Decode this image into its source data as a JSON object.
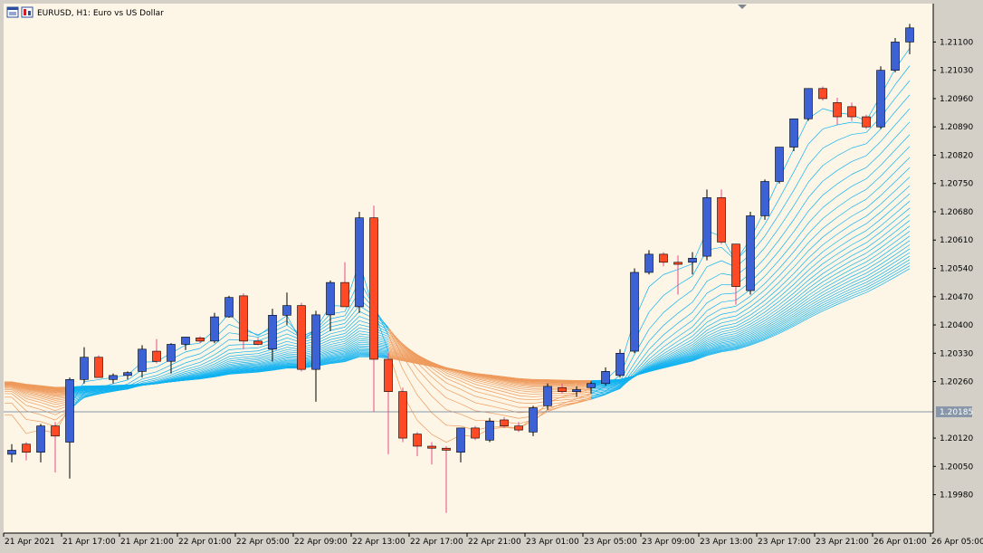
{
  "header": {
    "title": "EURUSD, H1:  Euro vs US Dollar",
    "symbol_icon": "chart-window-icon"
  },
  "colors": {
    "background": "#fdf6e6",
    "bull_candle": "#3d62d6",
    "bear_candle": "#ff4a25",
    "bull_wick": "#000000",
    "bear_wick": "#e84a8a",
    "ribbon_up": "#12b2f0",
    "ribbon_down": "#ee9a5c",
    "price_line": "#8796a8",
    "price_badge": "#8796a8"
  },
  "chart_data": {
    "type": "candlestick",
    "symbol": "EURUSD",
    "timeframe": "H1",
    "ylim": [
      1.19885,
      1.21195
    ],
    "y_ticks": [
      "1.21100",
      "1.21030",
      "1.20960",
      "1.20890",
      "1.20820",
      "1.20750",
      "1.20680",
      "1.20610",
      "1.20540",
      "1.20470",
      "1.20400",
      "1.20330",
      "1.20260",
      "1.20185",
      "1.20120",
      "1.20050",
      "1.19980"
    ],
    "x_ticks": [
      "21 Apr 2021",
      "21 Apr 17:00",
      "21 Apr 21:00",
      "22 Apr 01:00",
      "22 Apr 05:00",
      "22 Apr 09:00",
      "22 Apr 13:00",
      "22 Apr 17:00",
      "22 Apr 21:00",
      "23 Apr 01:00",
      "23 Apr 05:00",
      "23 Apr 09:00",
      "23 Apr 13:00",
      "23 Apr 17:00",
      "23 Apr 21:00",
      "26 Apr 01:00",
      "26 Apr 05:00"
    ],
    "current_price": "1.20185",
    "candles": [
      {
        "o": 1.2008,
        "h": 1.20105,
        "l": 1.2006,
        "c": 1.2009
      },
      {
        "o": 1.20105,
        "h": 1.2011,
        "l": 1.20065,
        "c": 1.20085
      },
      {
        "o": 1.20085,
        "h": 1.20155,
        "l": 1.2006,
        "c": 1.2015
      },
      {
        "o": 1.2015,
        "h": 1.2016,
        "l": 1.20035,
        "c": 1.20125
      },
      {
        "o": 1.2011,
        "h": 1.2027,
        "l": 1.2002,
        "c": 1.20265
      },
      {
        "o": 1.20265,
        "h": 1.20345,
        "l": 1.20255,
        "c": 1.2032
      },
      {
        "o": 1.2032,
        "h": 1.20325,
        "l": 1.2027,
        "c": 1.2027
      },
      {
        "o": 1.20265,
        "h": 1.2028,
        "l": 1.20255,
        "c": 1.20275
      },
      {
        "o": 1.20275,
        "h": 1.20285,
        "l": 1.20265,
        "c": 1.20282
      },
      {
        "o": 1.20285,
        "h": 1.2035,
        "l": 1.2027,
        "c": 1.2034
      },
      {
        "o": 1.20335,
        "h": 1.20365,
        "l": 1.20305,
        "c": 1.2031
      },
      {
        "o": 1.2031,
        "h": 1.20355,
        "l": 1.2028,
        "c": 1.20352
      },
      {
        "o": 1.20352,
        "h": 1.2037,
        "l": 1.20338,
        "c": 1.2037
      },
      {
        "o": 1.20368,
        "h": 1.20372,
        "l": 1.20355,
        "c": 1.2036
      },
      {
        "o": 1.2036,
        "h": 1.2043,
        "l": 1.20355,
        "c": 1.2042
      },
      {
        "o": 1.2042,
        "h": 1.20472,
        "l": 1.20418,
        "c": 1.20468
      },
      {
        "o": 1.20472,
        "h": 1.20478,
        "l": 1.2034,
        "c": 1.2036
      },
      {
        "o": 1.2036,
        "h": 1.20368,
        "l": 1.2035,
        "c": 1.20352
      },
      {
        "o": 1.2034,
        "h": 1.2044,
        "l": 1.2031,
        "c": 1.20424
      },
      {
        "o": 1.20424,
        "h": 1.2048,
        "l": 1.204,
        "c": 1.20448
      },
      {
        "o": 1.20448,
        "h": 1.20455,
        "l": 1.20285,
        "c": 1.2029
      },
      {
        "o": 1.2029,
        "h": 1.20435,
        "l": 1.2021,
        "c": 1.20425
      },
      {
        "o": 1.20425,
        "h": 1.2051,
        "l": 1.20385,
        "c": 1.20505
      },
      {
        "o": 1.20505,
        "h": 1.20555,
        "l": 1.20445,
        "c": 1.20445
      },
      {
        "o": 1.20445,
        "h": 1.2068,
        "l": 1.2043,
        "c": 1.20665
      },
      {
        "o": 1.20665,
        "h": 1.20695,
        "l": 1.20185,
        "c": 1.20315
      },
      {
        "o": 1.20315,
        "h": 1.2033,
        "l": 1.2008,
        "c": 1.20235
      },
      {
        "o": 1.20235,
        "h": 1.20245,
        "l": 1.2011,
        "c": 1.2012
      },
      {
        "o": 1.2013,
        "h": 1.20135,
        "l": 1.20075,
        "c": 1.201
      },
      {
        "o": 1.201,
        "h": 1.2011,
        "l": 1.20055,
        "c": 1.20095
      },
      {
        "o": 1.20095,
        "h": 1.201,
        "l": 1.19935,
        "c": 1.2009
      },
      {
        "o": 1.20085,
        "h": 1.20145,
        "l": 1.2006,
        "c": 1.20145
      },
      {
        "o": 1.20145,
        "h": 1.2015,
        "l": 1.20115,
        "c": 1.2012
      },
      {
        "o": 1.20115,
        "h": 1.2017,
        "l": 1.2011,
        "c": 1.20162
      },
      {
        "o": 1.20165,
        "h": 1.20172,
        "l": 1.20145,
        "c": 1.2015
      },
      {
        "o": 1.2015,
        "h": 1.2016,
        "l": 1.20135,
        "c": 1.2014
      },
      {
        "o": 1.20135,
        "h": 1.202,
        "l": 1.20125,
        "c": 1.20195
      },
      {
        "o": 1.202,
        "h": 1.20255,
        "l": 1.2019,
        "c": 1.20248
      },
      {
        "o": 1.20245,
        "h": 1.20255,
        "l": 1.2023,
        "c": 1.20235
      },
      {
        "o": 1.20235,
        "h": 1.20248,
        "l": 1.20222,
        "c": 1.2024
      },
      {
        "o": 1.20245,
        "h": 1.2026,
        "l": 1.2023,
        "c": 1.20255
      },
      {
        "o": 1.20255,
        "h": 1.20295,
        "l": 1.2025,
        "c": 1.20285
      },
      {
        "o": 1.20275,
        "h": 1.2034,
        "l": 1.2027,
        "c": 1.2033
      },
      {
        "o": 1.20335,
        "h": 1.2054,
        "l": 1.2033,
        "c": 1.2053
      },
      {
        "o": 1.2053,
        "h": 1.20585,
        "l": 1.20525,
        "c": 1.20575
      },
      {
        "o": 1.20575,
        "h": 1.2058,
        "l": 1.20545,
        "c": 1.20555
      },
      {
        "o": 1.20555,
        "h": 1.20572,
        "l": 1.20475,
        "c": 1.2055
      },
      {
        "o": 1.20555,
        "h": 1.2058,
        "l": 1.20525,
        "c": 1.20565
      },
      {
        "o": 1.2057,
        "h": 1.20735,
        "l": 1.2056,
        "c": 1.20715
      },
      {
        "o": 1.20715,
        "h": 1.20735,
        "l": 1.206,
        "c": 1.20605
      },
      {
        "o": 1.206,
        "h": 1.206,
        "l": 1.2045,
        "c": 1.20495
      },
      {
        "o": 1.20485,
        "h": 1.2068,
        "l": 1.20475,
        "c": 1.2067
      },
      {
        "o": 1.2067,
        "h": 1.2076,
        "l": 1.2066,
        "c": 1.20755
      },
      {
        "o": 1.20755,
        "h": 1.2084,
        "l": 1.2075,
        "c": 1.2084
      },
      {
        "o": 1.2084,
        "h": 1.2091,
        "l": 1.2083,
        "c": 1.2091
      },
      {
        "o": 1.2091,
        "h": 1.20985,
        "l": 1.20905,
        "c": 1.20985
      },
      {
        "o": 1.20985,
        "h": 1.2099,
        "l": 1.20955,
        "c": 1.2096
      },
      {
        "o": 1.2095,
        "h": 1.20962,
        "l": 1.20895,
        "c": 1.20915
      },
      {
        "o": 1.2094,
        "h": 1.2095,
        "l": 1.20905,
        "c": 1.20915
      },
      {
        "o": 1.20915,
        "h": 1.2092,
        "l": 1.20885,
        "c": 1.2089
      },
      {
        "o": 1.2089,
        "h": 1.2104,
        "l": 1.20885,
        "c": 1.2103
      },
      {
        "o": 1.2103,
        "h": 1.2111,
        "l": 1.21025,
        "c": 1.211
      },
      {
        "o": 1.211,
        "h": 1.21145,
        "l": 1.2107,
        "c": 1.21135
      }
    ]
  }
}
